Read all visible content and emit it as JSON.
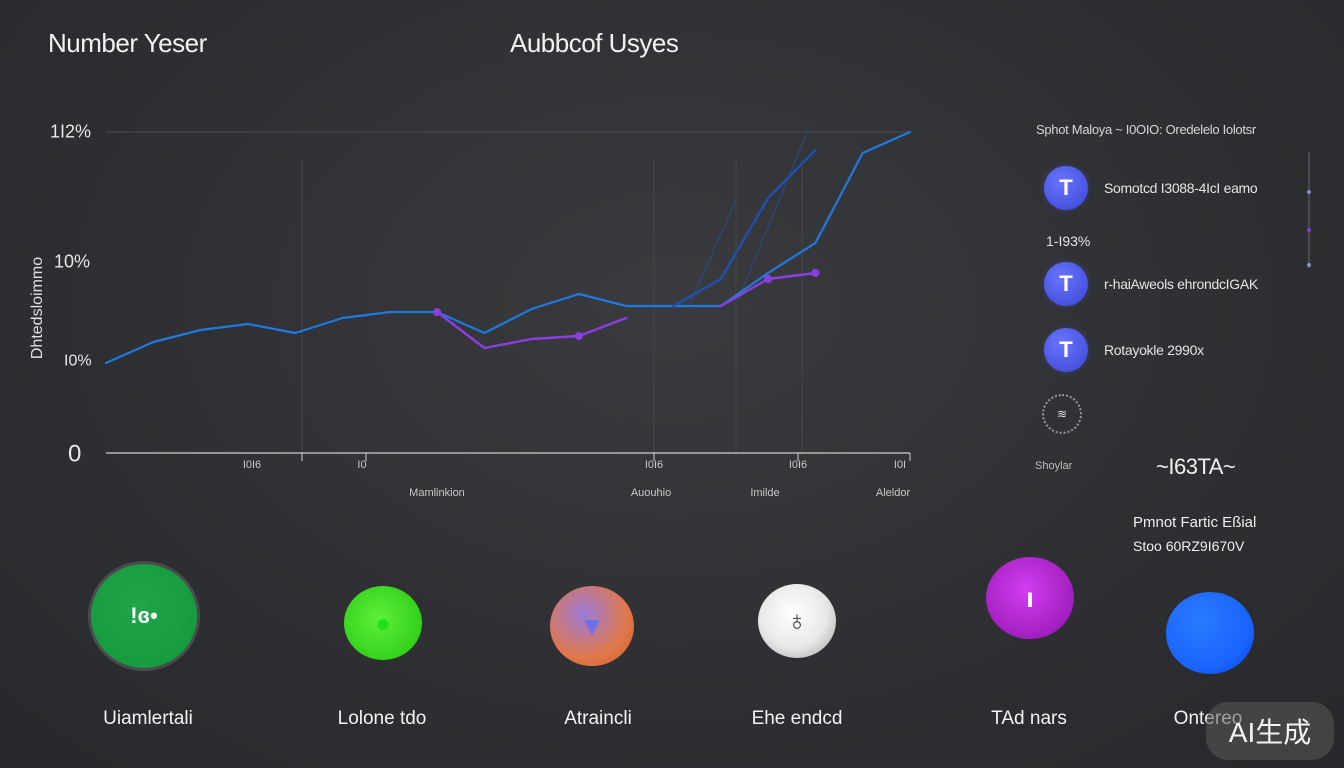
{
  "header": {
    "title": "Number Yeser",
    "chart_title": "Aubbcof Usyes"
  },
  "chart_data": {
    "type": "line",
    "title": "Aubbcof Usyes",
    "ylabel": "Dhtedsloimmo",
    "y_tick_labels": [
      "0",
      "I0%",
      "10%",
      "1I2%"
    ],
    "x_tick_labels": [
      "I0I6",
      "I0",
      "I0I6",
      "I0I6",
      "I0I"
    ],
    "x_category_labels": [
      "Mamlinkion",
      "Auouhio",
      "Imilde",
      "Aleldor"
    ],
    "x": [
      0,
      1,
      2,
      3,
      4,
      5,
      6,
      7,
      8,
      9,
      10,
      11,
      12,
      13,
      14,
      15,
      16,
      17
    ],
    "series": [
      {
        "color": "#1f7ae0",
        "values": [
          0.3,
          0.37,
          0.41,
          0.43,
          0.4,
          0.45,
          0.47,
          0.47,
          0.4,
          0.48,
          0.53,
          0.49,
          0.49,
          0.49,
          0.6,
          0.7,
          1.0,
          1.07
        ]
      },
      {
        "color": "#8b3fe0",
        "values": [
          null,
          null,
          null,
          null,
          null,
          null,
          null,
          0.47,
          0.35,
          0.38,
          0.39,
          0.45,
          null,
          0.49,
          0.58,
          0.6,
          null,
          null
        ]
      },
      {
        "color": "#1f4fb0",
        "values": [
          null,
          null,
          null,
          null,
          null,
          null,
          null,
          null,
          null,
          null,
          null,
          null,
          0.49,
          0.58,
          0.85,
          1.01,
          null,
          null
        ]
      }
    ],
    "ylim": [
      0,
      1.07
    ],
    "grid": true,
    "legend": "none"
  },
  "panel": {
    "header": "Sphot Maloya  ~  I0OIO: Oredelelo Iolotsr",
    "items": [
      {
        "icon_letter": "T",
        "text": "Somotcd I3088-4IcI eamo"
      },
      {
        "icon_letter": "T",
        "text": "r-haiAweols ehrondcIGAK"
      },
      {
        "icon_letter": "T",
        "text": "Rotayokle 2990x"
      }
    ],
    "stat": "1-I93%",
    "spinner_text": "≋",
    "small_label": "Shoylar",
    "code": "~I63TA~",
    "note_1": "Pmnot Fartic Eßial",
    "note_2": "Stoo 60RZ9I670V",
    "scroll_dots": [
      "#8a8fd0",
      "#7a3fd8",
      "#8a8fd0"
    ]
  },
  "apps": [
    {
      "label": "Uiamlertali",
      "color": "#1fa54a",
      "glyph": "!ɞ•"
    },
    {
      "label": "Lolone tdo",
      "color": "#35d11c",
      "glyph": "●"
    },
    {
      "label": "Atraincli",
      "color": "#e0784a",
      "glyph": "▼"
    },
    {
      "label": "Ehe endcd",
      "color": "#e8e8e8",
      "glyph": "♁"
    },
    {
      "label": "TAd nars",
      "color": "#a21fc0",
      "glyph": "ı"
    },
    {
      "label": "Ontereo",
      "color": "#1a63ff",
      "glyph": ""
    }
  ],
  "watermark": "AI生成"
}
